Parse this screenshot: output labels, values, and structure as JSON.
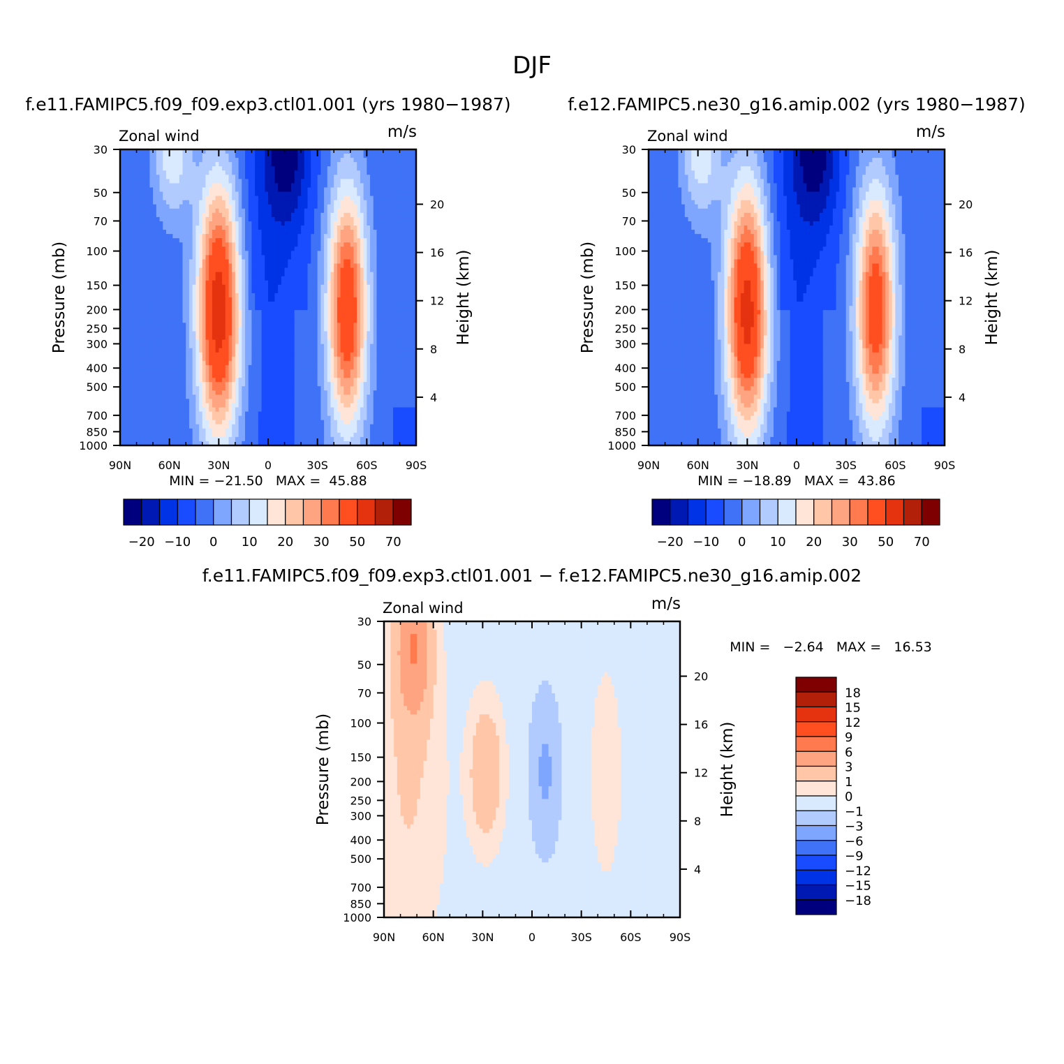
{
  "figure": {
    "title": "DJF"
  },
  "colors": {
    "main_scale": [
      "#00007f",
      "#0019b2",
      "#0033e5",
      "#1a4cff",
      "#3f72f7",
      "#7fa6ff",
      "#b2cbff",
      "#d9eaff",
      "#ffe5d8",
      "#ffc6a8",
      "#ffa480",
      "#ff7a4e",
      "#ff4e20",
      "#e5330f",
      "#b2200a",
      "#7f0000"
    ],
    "diff_scale": [
      "#00007f",
      "#0019b2",
      "#0033e5",
      "#1a4cff",
      "#3f72f7",
      "#7fa6ff",
      "#b2cbff",
      "#d9eaff",
      "#ffe5d8",
      "#ffc6a8",
      "#ffa480",
      "#ff7a4e",
      "#ff4e20",
      "#e5330f",
      "#b2200a",
      "#7f0000"
    ]
  },
  "chart_data": [
    {
      "type": "heatmap",
      "title": "f.e11.FAMIPC5.f09_f09.exp3.ctl01.001 (yrs 1980−1987)",
      "left_label": "Zonal wind",
      "right_label": "m/s",
      "ylabel": "Pressure (mb)",
      "ylabel_right": "Height (km)",
      "x_ticks": [
        "90N",
        "60N",
        "30N",
        "0",
        "30S",
        "60S",
        "90S"
      ],
      "y_ticks": [
        "30",
        "50",
        "70",
        "100",
        "150",
        "200",
        "250",
        "300",
        "400",
        "500",
        "700",
        "850",
        "1000"
      ],
      "y_ticks_right": [
        "20",
        "16",
        "12",
        "8",
        "4"
      ],
      "x_range": [
        90,
        -90
      ],
      "y_range": [
        1000,
        30
      ],
      "y_scale": "log",
      "min_max_text": "MIN = −21.50   MAX =  45.88",
      "min": -21.5,
      "max": 45.88,
      "colorbar_labels": [
        "−20",
        "−10",
        "0",
        "10",
        "20",
        "30",
        "50",
        "70"
      ],
      "jets": [
        {
          "lat": 30,
          "p": 200,
          "peak": 45.88,
          "w": 13,
          "h": 0.65
        },
        {
          "lat": -48,
          "p": 200,
          "peak": 38,
          "w": 12,
          "h": 0.62
        }
      ]
    },
    {
      "type": "heatmap",
      "title": "f.e12.FAMIPC5.ne30_g16.amip.002 (yrs 1980−1987)",
      "left_label": "Zonal wind",
      "right_label": "m/s",
      "ylabel": "Pressure (mb)",
      "ylabel_right": "Height (km)",
      "x_ticks": [
        "90N",
        "60N",
        "30N",
        "0",
        "30S",
        "60S",
        "90S"
      ],
      "y_ticks": [
        "30",
        "50",
        "70",
        "100",
        "150",
        "200",
        "250",
        "300",
        "400",
        "500",
        "700",
        "850",
        "1000"
      ],
      "y_ticks_right": [
        "20",
        "16",
        "12",
        "8",
        "4"
      ],
      "x_range": [
        90,
        -90
      ],
      "y_range": [
        1000,
        30
      ],
      "y_scale": "log",
      "min_max_text": "MIN = −18.89   MAX =  43.86",
      "min": -18.89,
      "max": 43.86,
      "colorbar_labels": [
        "−20",
        "−10",
        "0",
        "10",
        "20",
        "30",
        "50",
        "70"
      ],
      "jets": [
        {
          "lat": 30,
          "p": 200,
          "peak": 43.86,
          "w": 13,
          "h": 0.65
        },
        {
          "lat": -48,
          "p": 200,
          "peak": 36,
          "w": 12,
          "h": 0.62
        }
      ]
    },
    {
      "type": "heatmap",
      "title": "f.e11.FAMIPC5.f09_f09.exp3.ctl01.001 − f.e12.FAMIPC5.ne30_g16.amip.002",
      "left_label": "Zonal wind",
      "right_label": "m/s",
      "ylabel": "Pressure (mb)",
      "ylabel_right": "Height (km)",
      "x_ticks": [
        "90N",
        "60N",
        "30N",
        "0",
        "30S",
        "60S",
        "90S"
      ],
      "y_ticks": [
        "30",
        "50",
        "70",
        "100",
        "150",
        "200",
        "250",
        "300",
        "400",
        "500",
        "700",
        "850",
        "1000"
      ],
      "y_ticks_right": [
        "20",
        "16",
        "12",
        "8",
        "4"
      ],
      "x_range": [
        90,
        -90
      ],
      "y_range": [
        1000,
        30
      ],
      "y_scale": "log",
      "min_max_text": "MIN =   −2.64   MAX =   16.53",
      "min": -2.64,
      "max": 16.53,
      "colorbar_labels": [
        "18",
        "15",
        "12",
        "9",
        "6",
        "3",
        "1",
        "0",
        "−1",
        "−3",
        "−6",
        "−9",
        "−12",
        "−15",
        "−18"
      ]
    }
  ]
}
